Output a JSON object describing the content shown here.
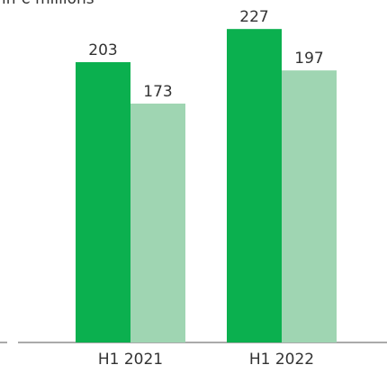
{
  "chart_data": {
    "type": "bar",
    "subtitle": "in € millions",
    "categories": [
      "H1 2021",
      "H1 2022"
    ],
    "series": [
      {
        "color": "#0bb04f",
        "values": [
          203,
          227
        ]
      },
      {
        "color": "#9fd5b2",
        "values": [
          173,
          197
        ]
      }
    ],
    "ylim": [
      0,
      248
    ]
  }
}
